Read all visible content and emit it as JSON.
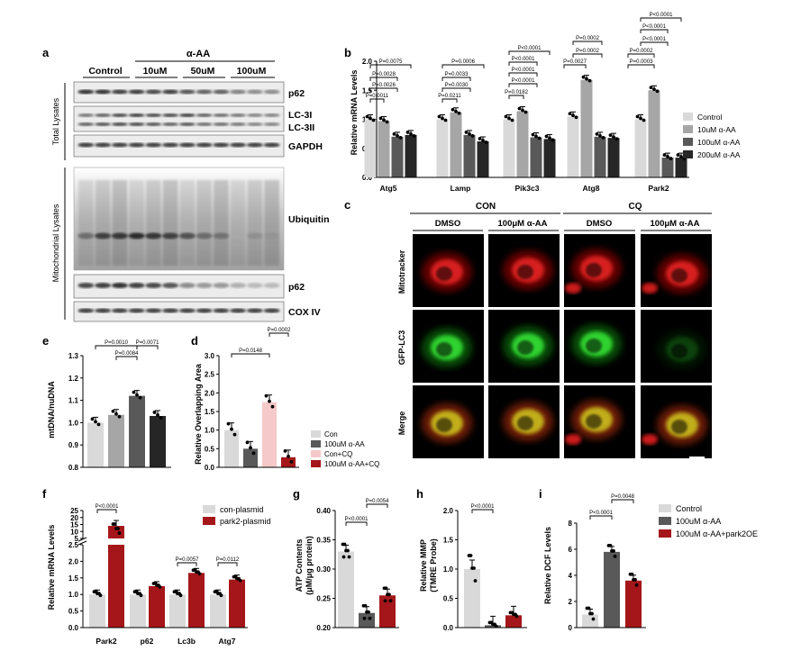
{
  "panel_labels": {
    "a": "a",
    "b": "b",
    "c": "c",
    "d": "d",
    "e": "e",
    "f": "f",
    "g": "g",
    "h": "h",
    "i": "i"
  },
  "blot": {
    "treatment": "α-AA",
    "groups": [
      "Control",
      "10uM",
      "50uM",
      "100uM"
    ],
    "section_total": "Total Lysates",
    "section_mito": "Mitochondrial Lysates",
    "bands": [
      "p62",
      "LC-3I",
      "LC-3II",
      "GAPDH",
      "Ubiquitin",
      "p62",
      "COX IV"
    ]
  },
  "colors": {
    "control": "#d9d9d9",
    "low": "#a6a6a6",
    "mid": "#595959",
    "high": "#262626",
    "red": "#a5161a",
    "pink": "#f5c9c9"
  },
  "chart_data": [
    {
      "panel": "b",
      "type": "bar",
      "categories": [
        "Atg5",
        "Lamp",
        "Pik3c3",
        "Atg8",
        "Park2"
      ],
      "ylabel": "Relative mRNA Levels",
      "ylim": [
        0,
        2.0
      ],
      "yticks": [
        "0.0",
        "0.5",
        "1.0",
        "1.5",
        "2.0"
      ],
      "series": [
        {
          "name": "Control",
          "values": [
            1.0,
            1.0,
            1.0,
            1.05,
            1.0
          ]
        },
        {
          "name": "10uM α-AA",
          "values": [
            0.97,
            1.12,
            1.14,
            1.68,
            1.5
          ]
        },
        {
          "name": "100uM α-AA",
          "values": [
            0.7,
            0.73,
            0.69,
            0.7,
            0.34
          ]
        },
        {
          "name": "200uM α-AA",
          "values": [
            0.73,
            0.62,
            0.66,
            0.68,
            0.34
          ]
        }
      ],
      "pvalues": [
        [
          "P=0.0075",
          "P=0.0028",
          "P=0.0026",
          "P=0.0011"
        ],
        [
          "P=0.0006",
          "P=0.0033",
          "P=0.0030",
          "P=0.0211"
        ],
        [
          "P<0.0001",
          "P<0.0001",
          "P<0.0001",
          "P<0.0001",
          "P=0.0182"
        ],
        [
          "P=0.0002",
          "P=0.0027",
          "P=0.0002"
        ],
        [
          "P<0.0001",
          "P<0.0001",
          "P<0.0001",
          "P=0.0002",
          "P=0.0003"
        ]
      ]
    },
    {
      "panel": "e",
      "type": "bar",
      "ylabel": "mtDNA/nuDNA",
      "ylim": [
        0.8,
        1.3
      ],
      "yticks": [
        "0.8",
        "0.9",
        "1.0",
        "1.1",
        "1.2",
        "1.3"
      ],
      "values": [
        1.0,
        1.035,
        1.12,
        1.03
      ],
      "pvalues": [
        "P=0.0010",
        "P=0.0071",
        "P=0.0084"
      ]
    },
    {
      "panel": "d",
      "type": "bar",
      "ylabel": "Relative Overlapping Area",
      "ylim": [
        0,
        3.0
      ],
      "yticks": [
        "0.0",
        "0.5",
        "1.0",
        "1.5",
        "2.0",
        "2.5",
        "3.0"
      ],
      "series_names": [
        "Con",
        "100uM α-AA",
        "Con+CQ",
        "100uM α-AA+CQ"
      ],
      "values": [
        1.0,
        0.5,
        1.75,
        0.27
      ],
      "pvalues": [
        "P=0.0148",
        "P=0.0002"
      ]
    },
    {
      "panel": "f",
      "type": "bar",
      "categories": [
        "Park2",
        "p62",
        "Lc3b",
        "Atg7"
      ],
      "ylabel": "Relative mRNA Levels",
      "yticks_low": [
        "0.0",
        "0.5",
        "1.0",
        "1.5",
        "2.0",
        "2.5"
      ],
      "yticks_high": [
        "5",
        "10",
        "15",
        "20",
        "25"
      ],
      "series": [
        {
          "name": "con-plasmid",
          "values": [
            1.0,
            1.0,
            1.0,
            1.0
          ]
        },
        {
          "name": "park2-plasmid",
          "values": [
            14.0,
            1.25,
            1.65,
            1.45
          ]
        }
      ],
      "pvalues": [
        "P<0.0001",
        "P=0.0057",
        "P=0.0112"
      ]
    },
    {
      "panel": "g",
      "type": "bar",
      "ylabel": "ATP Contents",
      "ylabel2": "(μM/μg protein)",
      "ylim": [
        0.2,
        0.4
      ],
      "yticks": [
        "0.20",
        "0.25",
        "0.30",
        "0.35",
        "0.40"
      ],
      "values": [
        0.33,
        0.225,
        0.255
      ],
      "pvalues": [
        "P<0.0001",
        "P=0.0054"
      ]
    },
    {
      "panel": "h",
      "type": "bar",
      "ylabel": "Relative MMP",
      "ylabel2": "(TMRE Probe)",
      "ylim": [
        0,
        2.0
      ],
      "yticks": [
        "0.0",
        "0.5",
        "1.0",
        "1.5",
        "2.0"
      ],
      "values": [
        1.0,
        0.04,
        0.21
      ],
      "pvalues": [
        "P<0.0001"
      ]
    },
    {
      "panel": "i",
      "type": "bar",
      "ylabel": "Relative DCF Levels",
      "ylim": [
        0,
        8
      ],
      "yticks": [
        "0",
        "2",
        "4",
        "6",
        "8"
      ],
      "series_names": [
        "Control",
        "100uM α-AA",
        "100uM α-AA+park2OE"
      ],
      "values": [
        1.0,
        5.8,
        3.6
      ],
      "pvalues": [
        "P<0.0001",
        "P=0.0048"
      ]
    }
  ],
  "micro": {
    "groups": [
      "CON",
      "CQ"
    ],
    "cols": [
      "DMSO",
      "100μM α-AA",
      "DMSO",
      "100μM α-AA"
    ],
    "rows": [
      "Mitotracker",
      "GFP-LC3",
      "Merge"
    ]
  }
}
